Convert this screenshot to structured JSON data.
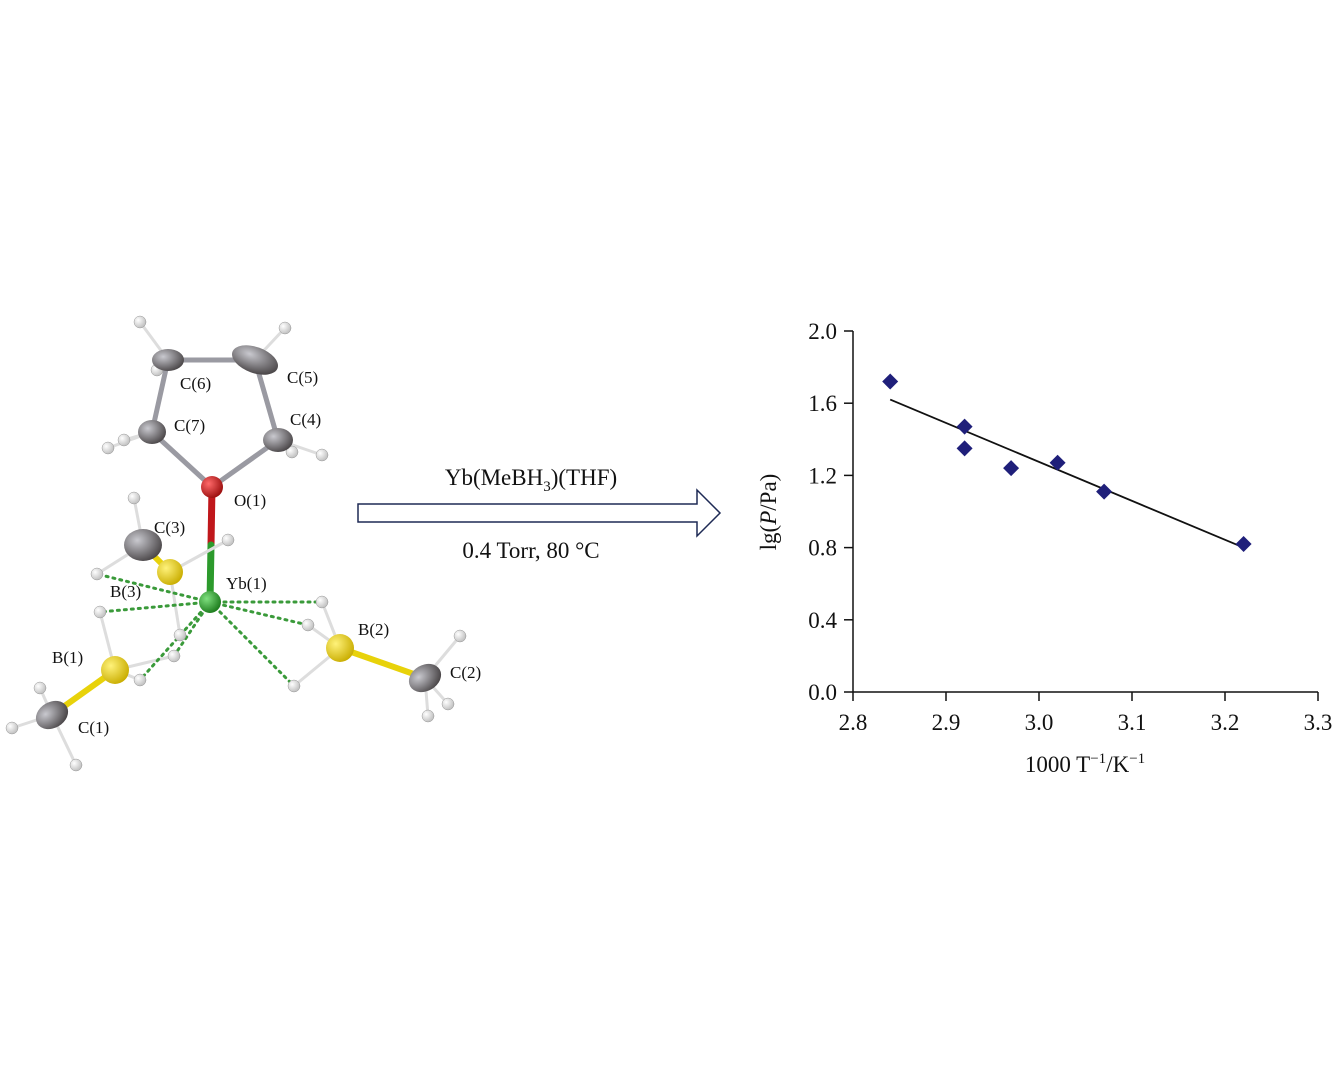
{
  "molecule": {
    "atoms": [
      "C(6)",
      "C(5)",
      "C(4)",
      "C(7)",
      "O(1)",
      "C(3)",
      "Yb(1)",
      "B(3)",
      "B(2)",
      "B(1)",
      "C(1)",
      "C(2)"
    ]
  },
  "reaction": {
    "reagent": [
      "Yb(MeBH",
      "3",
      ")(THF)"
    ],
    "conditions": "0.4 Torr, 80 °C"
  },
  "chart_data": {
    "type": "scatter",
    "x": [
      2.84,
      2.92,
      2.92,
      2.97,
      3.02,
      3.07,
      3.22
    ],
    "values": [
      1.72,
      1.47,
      1.35,
      1.24,
      1.27,
      1.11,
      0.82
    ],
    "color": "#1f1f7a",
    "fit": {
      "x": [
        2.84,
        3.22
      ],
      "values": [
        1.62,
        0.8
      ],
      "color": "#111111"
    },
    "xlabel": [
      "1000 T",
      "−1",
      "/K",
      "−1"
    ],
    "ylabel": [
      "lg(",
      "P",
      "/Pa)"
    ],
    "xlim": [
      2.8,
      3.3
    ],
    "ylim": [
      0,
      2
    ],
    "xticks": [
      2.8,
      2.9,
      {
        "value": 3,
        "label": "3.0"
      },
      3.1,
      3.2,
      3.3
    ],
    "yticks": [
      {
        "value": 0,
        "label": "0.0"
      },
      0.4,
      0.8,
      1.2,
      1.6,
      {
        "value": 2,
        "label": "2.0"
      }
    ]
  }
}
